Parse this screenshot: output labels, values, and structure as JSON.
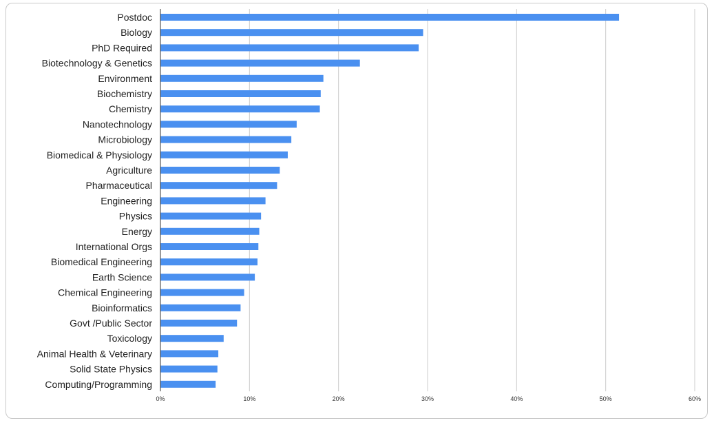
{
  "chart_data": {
    "type": "bar",
    "orientation": "horizontal",
    "categories": [
      "Postdoc",
      "Biology",
      "PhD Required",
      "Biotechnology & Genetics",
      "Environment",
      "Biochemistry",
      "Chemistry",
      "Nanotechnology",
      "Microbiology",
      "Biomedical & Physiology",
      "Agriculture",
      "Pharmaceutical",
      "Engineering",
      "Physics",
      "Energy",
      "International Orgs",
      "Biomedical Engineering",
      "Earth Science",
      "Chemical Engineering",
      "Bioinformatics",
      "Govt /Public Sector",
      "Toxicology",
      "Animal Health & Veterinary",
      "Solid State Physics",
      "Computing/Programming"
    ],
    "values": [
      51.5,
      29.5,
      29.0,
      22.4,
      18.3,
      18.0,
      17.9,
      15.3,
      14.7,
      14.3,
      13.4,
      13.1,
      11.8,
      11.3,
      11.1,
      11.0,
      10.9,
      10.6,
      9.4,
      9.0,
      8.6,
      7.1,
      6.5,
      6.4,
      6.2
    ],
    "xlim": [
      0,
      60
    ],
    "x_ticks": [
      "0%",
      "10%",
      "20%",
      "30%",
      "40%",
      "50%",
      "60%"
    ],
    "x_tick_values": [
      0,
      10,
      20,
      30,
      40,
      50,
      60
    ],
    "title": "",
    "xlabel": "",
    "ylabel": "",
    "grid": "vertical",
    "legend": "none",
    "bar_color": "#4a90f0",
    "grid_color": "#cccccc"
  }
}
